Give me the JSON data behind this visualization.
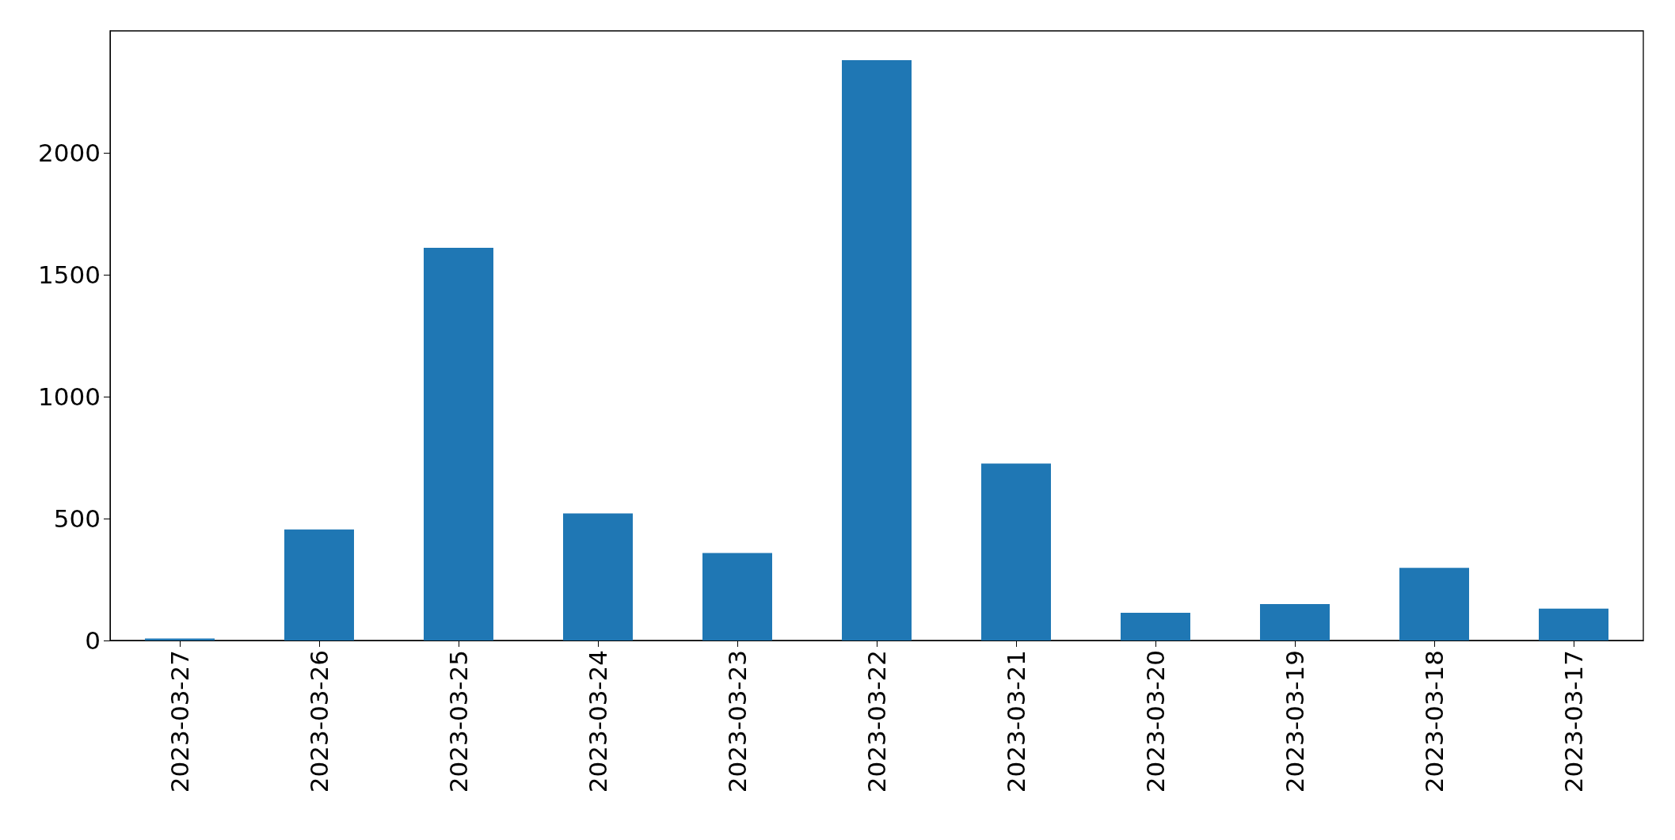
{
  "chart_data": {
    "type": "bar",
    "categories": [
      "2023-03-27",
      "2023-03-26",
      "2023-03-25",
      "2023-03-24",
      "2023-03-23",
      "2023-03-22",
      "2023-03-21",
      "2023-03-20",
      "2023-03-19",
      "2023-03-18",
      "2023-03-17"
    ],
    "values": [
      8,
      455,
      1610,
      521,
      359,
      2380,
      726,
      114,
      149,
      298,
      131
    ],
    "color": "#1f77b4",
    "ylim": [
      0,
      2500
    ],
    "yticks": [
      0,
      500,
      1000,
      1500,
      2000
    ],
    "grid": false
  }
}
